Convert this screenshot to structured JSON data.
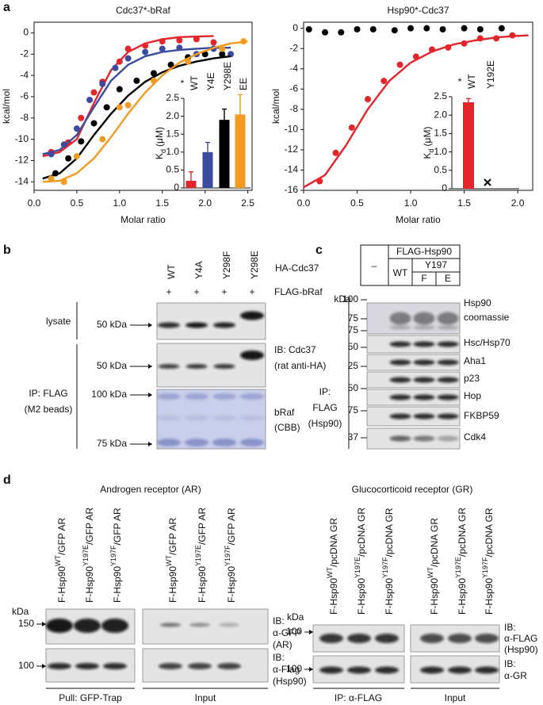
{
  "panel_labels": [
    "a",
    "b",
    "c",
    "d"
  ],
  "chart_data": [
    {
      "type": "scatter",
      "title": "Cdc37*-bRaf",
      "xlabel": "Molar ratio",
      "ylabel": "kcal/mol",
      "xlim": [
        0,
        2.55
      ],
      "ylim": [
        -14.8,
        1.0
      ],
      "xticks": [
        {
          "value": 0,
          "label": "0.0"
        },
        0.5,
        {
          "value": 1,
          "label": "1.0"
        },
        1.5,
        {
          "value": 2,
          "label": "2.0"
        },
        2.5
      ],
      "yticks": [
        0,
        -2,
        -4,
        -6,
        -8,
        -10,
        -12,
        -14
      ],
      "fit_x": [
        0.1,
        0.3,
        0.5,
        0.7,
        0.9,
        1.1,
        1.3,
        1.5,
        1.7,
        1.9,
        2.1,
        2.3,
        2.5
      ],
      "series": [
        {
          "color": "#e3262b",
          "x": [
            0.2,
            0.4,
            0.55,
            0.7,
            0.8,
            1.0,
            1.1,
            1.3,
            1.5,
            1.7,
            1.9,
            2.1
          ],
          "values": [
            -11.2,
            -10.3,
            -8.0,
            -5.6,
            -4.6,
            -2.7,
            -1.5,
            -1.2,
            -0.8,
            -0.7,
            -0.6,
            -0.9
          ],
          "fit": [
            -11.6,
            -11.2,
            -10.0,
            -6.6,
            -3.5,
            -1.8,
            -1.0,
            -0.6,
            -0.4,
            -0.35,
            -0.3,
            null,
            null
          ]
        },
        {
          "color": "#3b4ba0",
          "x": [
            0.2,
            0.35,
            0.5,
            0.65,
            0.8,
            0.95,
            1.1,
            1.3,
            1.5,
            1.7,
            1.9,
            2.1,
            2.3
          ],
          "values": [
            -11.4,
            -10.5,
            -9.0,
            -6.3,
            -4.8,
            -3.3,
            -2.4,
            -1.8,
            -1.5,
            -1.4,
            -2.0,
            -1.5,
            -2.0
          ],
          "fit": [
            -11.4,
            -11.0,
            -9.6,
            -7.0,
            -4.5,
            -3.0,
            -2.2,
            -1.8,
            -1.6,
            -1.5,
            -1.4,
            -1.4,
            null
          ]
        },
        {
          "color": "#000000",
          "x": [
            0.25,
            0.4,
            0.55,
            0.7,
            0.85,
            1.0,
            1.2,
            1.4,
            1.6,
            1.8,
            2.0,
            2.2
          ],
          "values": [
            -13.2,
            -11.8,
            -10.2,
            -8.5,
            -7.0,
            -5.3,
            -4.5,
            -3.8,
            -3.0,
            -2.3,
            -2.0,
            -2.0
          ],
          "fit": [
            -13.7,
            -13.2,
            -11.8,
            -9.6,
            -7.6,
            -5.9,
            -4.6,
            -3.7,
            -3.1,
            -2.7,
            -2.4,
            -2.2,
            null
          ]
        },
        {
          "color": "#f39a20",
          "x": [
            0.2,
            0.35,
            0.5,
            0.8,
            1.0,
            1.1,
            1.4,
            1.8,
            2.2,
            2.45
          ],
          "values": [
            -13.7,
            -14.0,
            -11.6,
            -10.0,
            -7.0,
            -6.8,
            -4.5,
            -2.7,
            -1.5,
            -0.8
          ],
          "fit": [
            -14.0,
            -13.9,
            -13.2,
            -11.8,
            -9.8,
            -7.6,
            -5.6,
            -4.0,
            -2.8,
            -2.0,
            -1.4,
            -1.0,
            -0.8
          ]
        }
      ],
      "inset": {
        "type": "bar",
        "ylabel": {
          "main": "K",
          "sub": "d",
          "unit": "(μM)"
        },
        "annotation": "*",
        "categories": [
          "WT",
          "Y4E",
          "Y298E",
          "EE"
        ],
        "values": [
          0.2,
          1.0,
          1.9,
          2.05
        ],
        "errors": [
          0.25,
          0.27,
          0.3,
          0.55
        ],
        "colors": [
          "#e3262b",
          "#3b4ba0",
          "#000000",
          "#f39a20"
        ],
        "ylim": [
          0,
          2.5
        ],
        "yticks": [
          0,
          0.5,
          {
            "value": 1,
            "label": "1.0"
          },
          1.5,
          {
            "value": 2,
            "label": "2.0"
          },
          2.5
        ]
      }
    },
    {
      "type": "scatter",
      "title": "Hsp90*-Cdc37",
      "xlabel": "Molar ratio",
      "ylabel": "kcal/mol",
      "xlim": [
        0,
        2.14
      ],
      "ylim": [
        -16,
        0.6
      ],
      "xticks": [
        {
          "value": 0,
          "label": "0.0"
        },
        0.5,
        {
          "value": 1,
          "label": "1.0"
        },
        1.5,
        {
          "value": 2,
          "label": "2.0"
        }
      ],
      "yticks": [
        0,
        -2,
        -4,
        -6,
        -8,
        -10,
        -12,
        -14,
        -16
      ],
      "fit_x": [
        0,
        0.2,
        0.4,
        0.6,
        0.8,
        1.0,
        1.2,
        1.4,
        1.6,
        1.8,
        2.0,
        2.1
      ],
      "series": [
        {
          "color": "#000000",
          "x": [
            0.05,
            0.2,
            0.35,
            0.5,
            0.65,
            0.85,
            1.0,
            1.15,
            1.3,
            1.5,
            1.65,
            1.85
          ],
          "values": [
            -0.1,
            -0.4,
            -0.4,
            -0.1,
            -0.1,
            -0.2,
            0,
            0,
            -0.1,
            0,
            -0.1,
            0
          ]
        },
        {
          "color": "#e3262b",
          "x": [
            0.15,
            0.3,
            0.45,
            0.6,
            0.75,
            0.9,
            1.05,
            1.2,
            1.35,
            1.5,
            1.65,
            1.8,
            1.95
          ],
          "values": [
            -15.1,
            -12.3,
            -9.8,
            -7.0,
            -5.2,
            -3.6,
            -2.8,
            -2.1,
            -1.9,
            -1.5,
            -1.0,
            -1.0,
            -0.7
          ],
          "fit": [
            -15.7,
            -14.5,
            -11.5,
            -8.0,
            -5.2,
            -3.4,
            -2.3,
            -1.6,
            -1.2,
            -0.9,
            -0.75,
            -0.7
          ]
        }
      ],
      "inset": {
        "type": "bar",
        "ylabel": {
          "main": "K",
          "sub": "d",
          "unit": "(μM)"
        },
        "annotation": "*",
        "categories": [
          "WT",
          "Y192E"
        ],
        "values": [
          2.35,
          null
        ],
        "errors": [
          0.1,
          null
        ],
        "colors": [
          "#e3262b",
          "#000000"
        ],
        "ylim": [
          0,
          2.5
        ],
        "yticks": [
          0,
          0.5,
          {
            "value": 1,
            "label": "1.0"
          },
          1.5,
          {
            "value": 2,
            "label": "2.0"
          },
          2.5
        ]
      }
    }
  ],
  "panel_b": {
    "lanes": [
      "WT",
      "Y4A",
      "Y298F",
      "Y298E"
    ],
    "rows": [
      {
        "label": "HA-Cdc37"
      },
      {
        "label": "FLAG-bRaf",
        "marks": [
          "+",
          "+",
          "+",
          "+"
        ]
      }
    ],
    "lysate": "lysate",
    "ip": [
      "IP: FLAG",
      "(M2 beads)"
    ],
    "markers": [
      "50 kDa",
      "50 kDa",
      "100 kDa",
      "75 kDa"
    ],
    "ib_cdc37": [
      "IB: Cdc37",
      "(rat anti-HA)"
    ],
    "ib_braf": [
      "bRaf",
      "(CBB)"
    ]
  },
  "panel_c": {
    "header": {
      "none": "–",
      "construct": "FLAG-Hsp90",
      "wt": "WT",
      "mutant": "Y197",
      "variants": [
        "F",
        "E"
      ]
    },
    "kda": "kDa",
    "markers": [
      "100",
      "75",
      "75",
      "50",
      "25",
      "50",
      "75",
      "37"
    ],
    "rows": [
      "Hsp90",
      "coomassie",
      "Hsc/Hsp70",
      "Aha1",
      "p23",
      "Hop",
      "FKBP59",
      "Cdk4"
    ],
    "ip": [
      "IP:",
      "FLAG",
      "(Hsp90)"
    ]
  },
  "panel_d": {
    "ar": {
      "title": "Androgen receptor (AR)",
      "lanes": [
        {
          "pre": "F-Hsp90",
          "sup": "WT",
          "post": "/GFP AR"
        },
        {
          "pre": "F-Hsp90",
          "sup": "Y197E",
          "post": "/GFP AR"
        },
        {
          "pre": "F-Hsp90",
          "sup": "Y197F",
          "post": "/GFP AR"
        },
        {
          "pre": "F-Hsp90",
          "sup": "WT",
          "post": "/GFP AR"
        },
        {
          "pre": "F-Hsp90",
          "sup": "Y197E",
          "post": "/GFP AR"
        },
        {
          "pre": "F-Hsp90",
          "sup": "Y197F",
          "post": "/GFP AR"
        }
      ],
      "kda": "kDa",
      "markers": [
        "150",
        "100"
      ],
      "ib_top": [
        "IB:",
        "α-GFP",
        "(AR)"
      ],
      "ib_bottom": [
        "IB:",
        "α-Flag",
        "(Hsp90)"
      ],
      "groups": [
        "Pull: GFP-Trap",
        "Input"
      ]
    },
    "gr": {
      "title": "Glucocorticoid receptor (GR)",
      "lanes": [
        {
          "pre": "F-Hsp90",
          "sup": "WT",
          "post": "/pcDNA GR"
        },
        {
          "pre": "F-Hsp90",
          "sup": "Y197E",
          "post": "/pcDNA GR"
        },
        {
          "pre": "F-Hsp90",
          "sup": "Y197F",
          "post": "/pcDNA GR"
        },
        {
          "pre": "F-Hsp90",
          "sup": "WT",
          "post": "/pcDNA GR"
        },
        {
          "pre": "F-Hsp90",
          "sup": "Y197E",
          "post": "/pcDNA GR"
        },
        {
          "pre": "F-Hsp90",
          "sup": "Y197F",
          "post": "/pcDNA GR"
        }
      ],
      "kda": "kDa",
      "markers": [
        "100",
        "100"
      ],
      "ib_top": [
        "IB:",
        "α-FLAG",
        "(Hsp90)"
      ],
      "ib_bottom": [
        "IB:",
        "α-GR"
      ],
      "groups": [
        "IP: α-FLAG",
        "Input"
      ]
    }
  }
}
